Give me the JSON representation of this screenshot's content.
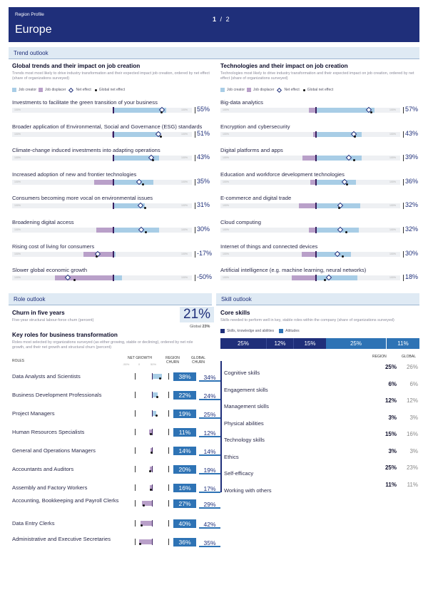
{
  "header": {
    "small": "Region Profile",
    "region": "Europe",
    "page_current": "1",
    "page_sep": "/",
    "page_total": "2"
  },
  "trend_outlook": {
    "title": "Trend outlook"
  },
  "global_trends": {
    "title": "Global trends and their impact on job creation",
    "desc": "Trends most most likely to drive industry transformation and their expected impact job creation, ordered by net effect (share of organizations surveyed)",
    "legend": {
      "job_creator": "Job creator",
      "job_displacer": "Job displacer",
      "net_effect": "Net effect",
      "global_net_effect": "Global net effect"
    },
    "scale_left": "100%",
    "scale_right": "100%",
    "items": [
      {
        "label": "Investments to facilitate the green transition of your business",
        "value": "55%"
      },
      {
        "label": "Broader application of Environmental, Social and Governance (ESG) standards",
        "value": "51%"
      },
      {
        "label": "Climate-change induced investments into adapting operations",
        "value": "43%"
      },
      {
        "label": "Increased adoption of new and frontier technologies",
        "value": "35%"
      },
      {
        "label": "Consumers becoming more vocal on environmental issues",
        "value": "31%"
      },
      {
        "label": "Broadening digital access",
        "value": "30%"
      },
      {
        "label": "Rising cost of living for consumers",
        "value": "-17%"
      },
      {
        "label": "Slower global economic growth",
        "value": "-50%"
      }
    ]
  },
  "tech_trends": {
    "title": "Technologies and their impact on job creation",
    "desc": "Technologies most likely to drive industry transformation and their expected impact on job creation, ordered by net effect (share of organizations surveyed)",
    "legend": {
      "job_creator": "Job creator",
      "job_displacer": "Job displacer",
      "net_effect": "Net effect",
      "global_net_effect": "Global net effect"
    },
    "scale_left": "100%",
    "scale_right": "100%",
    "items": [
      {
        "label": "Big-data analytics",
        "value": "57%"
      },
      {
        "label": "Encryption and cybersecurity",
        "value": "43%"
      },
      {
        "label": "Digital platforms and apps",
        "value": "39%"
      },
      {
        "label": "Education and workforce development technologies",
        "value": "36%"
      },
      {
        "label": "E-commerce and digital trade",
        "value": "32%"
      },
      {
        "label": "Cloud computing",
        "value": "32%"
      },
      {
        "label": "Internet of things and connected devices",
        "value": "30%"
      },
      {
        "label": "Artificial intelligence (e.g. machine learning, neural networks)",
        "value": "18%"
      }
    ]
  },
  "role_outlook": {
    "title": "Role outlook"
  },
  "skill_outlook": {
    "title": "Skill outlook"
  },
  "churn": {
    "title": "Churn in five years",
    "desc": "Five-year structural labour-force churn (percent)",
    "value": "21%",
    "global_label": "Global",
    "global_value": "23%"
  },
  "key_roles": {
    "title": "Key roles for business transformation",
    "desc": "Roles most selected by organizations surveyed (as either growing, stable or declining), ordered by net role growth, and their net growth and structural churn (percent)",
    "col_roles": "ROLES",
    "col_net_growth": "NET GROWTH",
    "col_region_churn": "REGION CHURN",
    "col_global_churn": "GLOBAL CHURN",
    "sub_left": "-50%",
    "sub_mid": "0",
    "sub_right": "50%",
    "rows": [
      {
        "name": "Data Analysts and Scientists",
        "region": "38%",
        "global": "34%"
      },
      {
        "name": "Business Development Professionals",
        "region": "22%",
        "global": "24%"
      },
      {
        "name": "Project Managers",
        "region": "19%",
        "global": "25%"
      },
      {
        "name": "Human Resources Specialists",
        "region": "11%",
        "global": "12%"
      },
      {
        "name": "General and Operations Managers",
        "region": "14%",
        "global": "14%"
      },
      {
        "name": "Accountants and Auditors",
        "region": "20%",
        "global": "19%"
      },
      {
        "name": "Assembly and Factory Workers",
        "region": "16%",
        "global": "17%"
      },
      {
        "name": "Accounting, Bookkeeping and Payroll Clerks",
        "region": "27%",
        "global": "29%"
      },
      {
        "name": "Data Entry Clerks",
        "region": "40%",
        "global": "42%"
      },
      {
        "name": "Administrative and Executive Secretaries",
        "region": "36%",
        "global": "35%"
      }
    ]
  },
  "core_skills": {
    "title": "Core skills",
    "desc": "Skills needed to perform well in key, stable roles within the company (share of organizations surveyed)",
    "legend_a": "Skills, knowledge and abilities",
    "legend_b": "Attitudes",
    "bar_values": [
      "25%",
      "12%",
      "15%",
      "25%",
      "11%"
    ],
    "col_region": "REGION",
    "col_global": "GLOBAL",
    "rows": [
      {
        "name": "Cognitive skills",
        "region": "25%",
        "global": "26%"
      },
      {
        "name": "Engagement skills",
        "region": "6%",
        "global": "6%"
      },
      {
        "name": "Management skills",
        "region": "12%",
        "global": "12%"
      },
      {
        "name": "Physical abilities",
        "region": "3%",
        "global": "3%"
      },
      {
        "name": "Technology skills",
        "region": "15%",
        "global": "16%"
      },
      {
        "name": "Ethics",
        "region": "3%",
        "global": "3%"
      },
      {
        "name": "Self-efficacy",
        "region": "25%",
        "global": "23%"
      },
      {
        "name": "Working with others",
        "region": "11%",
        "global": "11%"
      }
    ]
  },
  "colors": {
    "navy": "#1f2f7a",
    "creator": "#a8cde6",
    "displacer": "#b9a0c9",
    "churn_blue": "#2e73b5",
    "section_bg": "#dfeaf4"
  }
}
